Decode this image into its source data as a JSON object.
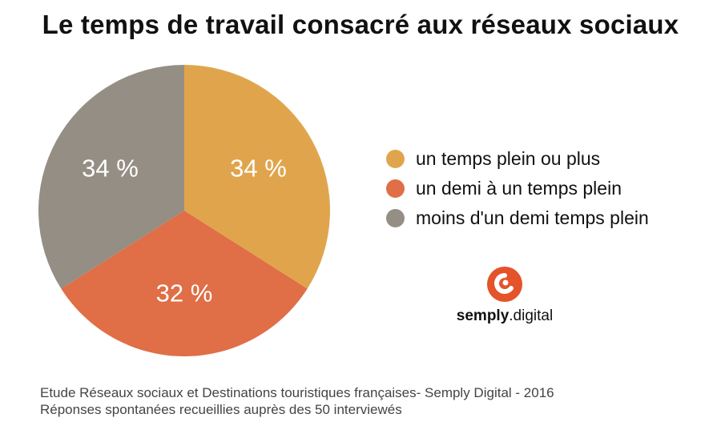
{
  "title": "Le temps de travail consacré aux réseaux sociaux",
  "chart_data": {
    "type": "pie",
    "slices": [
      {
        "label": "un temps plein ou plus",
        "value": 34,
        "display": "34 %",
        "color": "#E0A54C"
      },
      {
        "label": "un demi à un temps plein",
        "value": 32,
        "display": "32 %",
        "color": "#E06E46"
      },
      {
        "label": "moins d'un demi temps plein",
        "value": 34,
        "display": "34 %",
        "color": "#958E84"
      }
    ],
    "start": "12 o'clock, clockwise",
    "legend_position": "right"
  },
  "logo": {
    "name_bold": "semply",
    "name_rest": ".digital",
    "accent": "#E4532A"
  },
  "footer": {
    "line1": "Etude Réseaux sociaux et Destinations touristiques françaises- Semply Digital - 2016",
    "line2": "Réponses spontanées recueillies auprès des 50 interviewés"
  }
}
